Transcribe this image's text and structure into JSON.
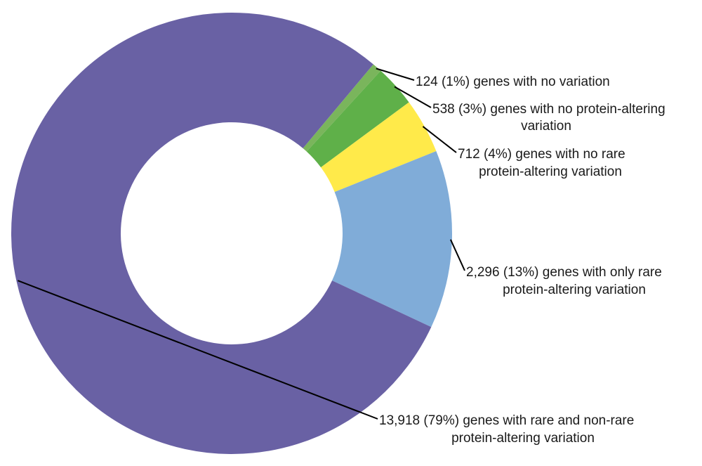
{
  "chart_data": {
    "type": "pie",
    "variant": "donut",
    "legend": "none",
    "slices": [
      {
        "count": 124,
        "percent": 1,
        "line1": "124 (1%) genes with no variation",
        "line2": "",
        "color": "#7ab55c"
      },
      {
        "count": 538,
        "percent": 3,
        "line1": "538 (3%) genes with no protein-altering",
        "line2": "variation",
        "color": "#5fb049"
      },
      {
        "count": 712,
        "percent": 4,
        "line1": "712 (4%) genes with no rare",
        "line2": "protein-altering variation",
        "color": "#ffea4a"
      },
      {
        "count": 2296,
        "percent": 13,
        "line1": "2,296 (13%) genes with only rare",
        "line2": "protein-altering variation",
        "color": "#80acd8"
      },
      {
        "count": 13918,
        "percent": 79,
        "line1": "13,918 (79%) genes with rare and non-rare",
        "line2": "protein-altering variation",
        "color": "#6961a4"
      }
    ]
  }
}
